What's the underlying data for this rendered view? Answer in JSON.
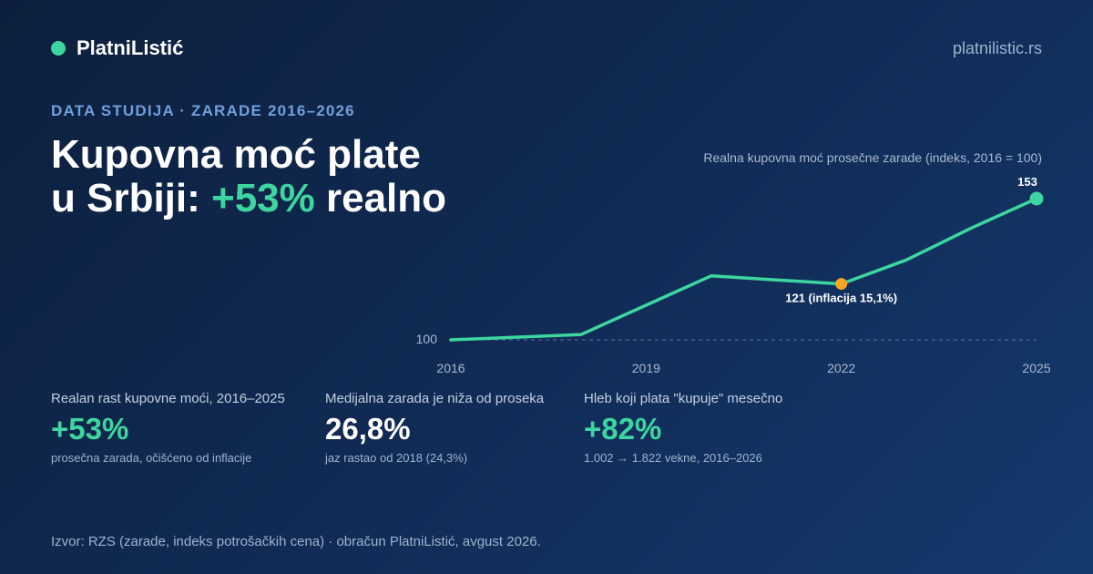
{
  "brand": {
    "name": "PlatniListić",
    "url": "platnilistic.rs"
  },
  "kicker": "DATA STUDIJA · ZARADE 2016–2026",
  "headline": {
    "line1": "Kupovna moć plate",
    "line2_pre": "u Srbiji: ",
    "line2_accent": "+53%",
    "line2_post": " realno"
  },
  "colors": {
    "accent": "#3dd6a0",
    "highlight": "#f5a623",
    "background": "#0d1f3d"
  },
  "chart_data": {
    "type": "line",
    "title": "Realna kupovna moć prosečne zarade (indeks, 2016 = 100)",
    "x": [
      2016,
      2017,
      2018,
      2019,
      2020,
      2021,
      2022,
      2023,
      2024,
      2025
    ],
    "values": [
      100,
      101,
      102,
      113,
      124,
      122.5,
      121,
      130,
      142,
      153
    ],
    "xticks": [
      "2016",
      "2019",
      "2022",
      "2025"
    ],
    "baseline": {
      "value": 100,
      "label": "100"
    },
    "annotations": [
      {
        "x": 2022,
        "y": 121,
        "label": "121 (inflacija 15,1%)",
        "color": "#f5a623"
      },
      {
        "x": 2025,
        "y": 153,
        "label": "153",
        "color": "#3dd6a0"
      }
    ],
    "xlim": [
      2016,
      2025
    ],
    "ylim": [
      100,
      153
    ],
    "grid": false
  },
  "stats": [
    {
      "label": "Realan rast kupovne moći, 2016–2025",
      "value": "+53%",
      "note": "prosečna zarada, očišćeno od inflacije"
    },
    {
      "label": "Medijalna zarada je niža od proseka",
      "value": "26,8%",
      "note": "jaz rastao od 2018 (24,3%)"
    },
    {
      "label": "Hleb koji plata \"kupuje\" mesečno",
      "value": "+82%",
      "note": "1.002 → 1.822 vekne, 2016–2026"
    }
  ],
  "source": "Izvor: RZS (zarade, indeks potrošačkih cena) · obračun PlatniListić, avgust 2026."
}
